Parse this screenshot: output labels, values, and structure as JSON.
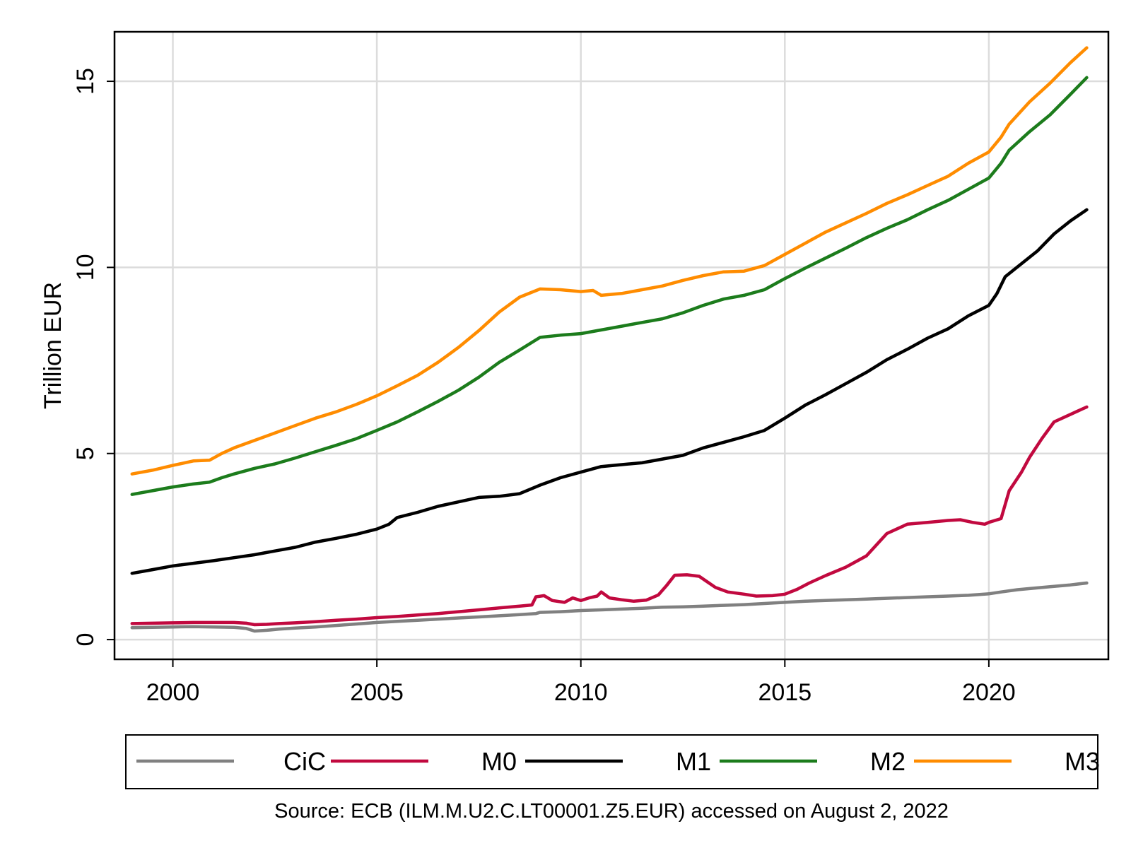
{
  "chart_data": {
    "type": "line",
    "title": "",
    "xlabel": "",
    "ylabel": "Trillion EUR",
    "xlim": [
      1998.57,
      2022.93
    ],
    "ylim": [
      -0.53,
      16.33
    ],
    "xticks": [
      2000,
      2005,
      2010,
      2015,
      2020
    ],
    "yticks": [
      0,
      5,
      10,
      15
    ],
    "ytick_labels": [
      "0",
      "5",
      "10",
      "15"
    ],
    "xtick_labels": [
      "2000",
      "2005",
      "2010",
      "2015",
      "2020"
    ],
    "grid": true,
    "legend_position": "bottom",
    "source": "Source: ECB (ILM.M.U2.C.LT00001.Z5.EUR) accessed on August 2, 2022",
    "series": [
      {
        "name": "CiC",
        "color": "#808080",
        "points": [
          [
            1999.0,
            0.32
          ],
          [
            1999.5,
            0.33
          ],
          [
            2000.0,
            0.34
          ],
          [
            2000.5,
            0.35
          ],
          [
            2001.0,
            0.34
          ],
          [
            2001.5,
            0.33
          ],
          [
            2001.8,
            0.3
          ],
          [
            2002.0,
            0.23
          ],
          [
            2002.3,
            0.25
          ],
          [
            2002.6,
            0.28
          ],
          [
            2003.0,
            0.31
          ],
          [
            2003.5,
            0.34
          ],
          [
            2004.0,
            0.38
          ],
          [
            2004.5,
            0.42
          ],
          [
            2005.0,
            0.46
          ],
          [
            2005.5,
            0.49
          ],
          [
            2006.0,
            0.52
          ],
          [
            2006.5,
            0.55
          ],
          [
            2007.0,
            0.58
          ],
          [
            2007.5,
            0.61
          ],
          [
            2008.0,
            0.64
          ],
          [
            2008.5,
            0.67
          ],
          [
            2008.9,
            0.7
          ],
          [
            2009.0,
            0.73
          ],
          [
            2009.5,
            0.75
          ],
          [
            2010.0,
            0.78
          ],
          [
            2010.5,
            0.8
          ],
          [
            2011.0,
            0.82
          ],
          [
            2011.5,
            0.84
          ],
          [
            2012.0,
            0.87
          ],
          [
            2012.5,
            0.88
          ],
          [
            2013.0,
            0.9
          ],
          [
            2013.5,
            0.92
          ],
          [
            2014.0,
            0.94
          ],
          [
            2014.5,
            0.97
          ],
          [
            2015.0,
            1.0
          ],
          [
            2015.5,
            1.03
          ],
          [
            2016.0,
            1.05
          ],
          [
            2016.5,
            1.07
          ],
          [
            2017.0,
            1.09
          ],
          [
            2017.5,
            1.11
          ],
          [
            2018.0,
            1.13
          ],
          [
            2018.5,
            1.15
          ],
          [
            2019.0,
            1.17
          ],
          [
            2019.5,
            1.19
          ],
          [
            2020.0,
            1.23
          ],
          [
            2020.3,
            1.28
          ],
          [
            2020.7,
            1.34
          ],
          [
            2021.0,
            1.37
          ],
          [
            2021.5,
            1.42
          ],
          [
            2022.0,
            1.47
          ],
          [
            2022.4,
            1.52
          ]
        ]
      },
      {
        "name": "M0",
        "color": "#c1093f",
        "points": [
          [
            1999.0,
            0.43
          ],
          [
            1999.5,
            0.44
          ],
          [
            2000.0,
            0.45
          ],
          [
            2000.5,
            0.46
          ],
          [
            2001.0,
            0.46
          ],
          [
            2001.5,
            0.46
          ],
          [
            2001.8,
            0.44
          ],
          [
            2002.0,
            0.4
          ],
          [
            2002.3,
            0.41
          ],
          [
            2002.6,
            0.43
          ],
          [
            2003.0,
            0.45
          ],
          [
            2003.5,
            0.48
          ],
          [
            2004.0,
            0.52
          ],
          [
            2004.5,
            0.55
          ],
          [
            2005.0,
            0.59
          ],
          [
            2005.5,
            0.62
          ],
          [
            2006.0,
            0.66
          ],
          [
            2006.5,
            0.7
          ],
          [
            2007.0,
            0.75
          ],
          [
            2007.5,
            0.8
          ],
          [
            2008.0,
            0.85
          ],
          [
            2008.5,
            0.9
          ],
          [
            2008.8,
            0.93
          ],
          [
            2008.9,
            1.15
          ],
          [
            2009.1,
            1.18
          ],
          [
            2009.3,
            1.05
          ],
          [
            2009.6,
            1.0
          ],
          [
            2009.8,
            1.12
          ],
          [
            2010.0,
            1.05
          ],
          [
            2010.2,
            1.12
          ],
          [
            2010.4,
            1.17
          ],
          [
            2010.5,
            1.28
          ],
          [
            2010.7,
            1.12
          ],
          [
            2011.0,
            1.07
          ],
          [
            2011.3,
            1.03
          ],
          [
            2011.6,
            1.06
          ],
          [
            2011.9,
            1.2
          ],
          [
            2012.1,
            1.45
          ],
          [
            2012.3,
            1.73
          ],
          [
            2012.6,
            1.74
          ],
          [
            2012.9,
            1.7
          ],
          [
            2013.1,
            1.55
          ],
          [
            2013.3,
            1.4
          ],
          [
            2013.6,
            1.28
          ],
          [
            2014.0,
            1.22
          ],
          [
            2014.3,
            1.17
          ],
          [
            2014.7,
            1.18
          ],
          [
            2015.0,
            1.22
          ],
          [
            2015.3,
            1.35
          ],
          [
            2015.6,
            1.52
          ],
          [
            2016.0,
            1.72
          ],
          [
            2016.5,
            1.95
          ],
          [
            2017.0,
            2.25
          ],
          [
            2017.5,
            2.85
          ],
          [
            2018.0,
            3.1
          ],
          [
            2018.5,
            3.15
          ],
          [
            2019.0,
            3.2
          ],
          [
            2019.3,
            3.22
          ],
          [
            2019.6,
            3.15
          ],
          [
            2019.9,
            3.1
          ],
          [
            2020.0,
            3.15
          ],
          [
            2020.3,
            3.25
          ],
          [
            2020.5,
            4.0
          ],
          [
            2020.8,
            4.5
          ],
          [
            2021.0,
            4.9
          ],
          [
            2021.3,
            5.4
          ],
          [
            2021.6,
            5.85
          ],
          [
            2022.0,
            6.05
          ],
          [
            2022.3,
            6.2
          ],
          [
            2022.4,
            6.25
          ]
        ]
      },
      {
        "name": "M1",
        "color": "#000000",
        "points": [
          [
            1999.0,
            1.78
          ],
          [
            1999.5,
            1.88
          ],
          [
            2000.0,
            1.98
          ],
          [
            2000.5,
            2.05
          ],
          [
            2001.0,
            2.12
          ],
          [
            2001.5,
            2.2
          ],
          [
            2002.0,
            2.28
          ],
          [
            2002.5,
            2.38
          ],
          [
            2003.0,
            2.48
          ],
          [
            2003.5,
            2.62
          ],
          [
            2004.0,
            2.72
          ],
          [
            2004.5,
            2.83
          ],
          [
            2005.0,
            2.97
          ],
          [
            2005.3,
            3.1
          ],
          [
            2005.5,
            3.28
          ],
          [
            2006.0,
            3.42
          ],
          [
            2006.5,
            3.58
          ],
          [
            2007.0,
            3.7
          ],
          [
            2007.5,
            3.82
          ],
          [
            2008.0,
            3.85
          ],
          [
            2008.5,
            3.92
          ],
          [
            2009.0,
            4.15
          ],
          [
            2009.5,
            4.35
          ],
          [
            2010.0,
            4.5
          ],
          [
            2010.5,
            4.65
          ],
          [
            2011.0,
            4.7
          ],
          [
            2011.5,
            4.75
          ],
          [
            2012.0,
            4.85
          ],
          [
            2012.5,
            4.95
          ],
          [
            2013.0,
            5.15
          ],
          [
            2013.5,
            5.3
          ],
          [
            2014.0,
            5.45
          ],
          [
            2014.5,
            5.62
          ],
          [
            2015.0,
            5.95
          ],
          [
            2015.5,
            6.3
          ],
          [
            2016.0,
            6.58
          ],
          [
            2016.5,
            6.88
          ],
          [
            2017.0,
            7.18
          ],
          [
            2017.5,
            7.52
          ],
          [
            2018.0,
            7.8
          ],
          [
            2018.5,
            8.1
          ],
          [
            2019.0,
            8.35
          ],
          [
            2019.5,
            8.7
          ],
          [
            2020.0,
            8.98
          ],
          [
            2020.2,
            9.3
          ],
          [
            2020.4,
            9.75
          ],
          [
            2020.8,
            10.1
          ],
          [
            2021.2,
            10.45
          ],
          [
            2021.6,
            10.9
          ],
          [
            2022.0,
            11.25
          ],
          [
            2022.4,
            11.55
          ]
        ]
      },
      {
        "name": "M2",
        "color": "#1c7c1c",
        "points": [
          [
            1999.0,
            3.9
          ],
          [
            1999.5,
            4.0
          ],
          [
            2000.0,
            4.1
          ],
          [
            2000.5,
            4.18
          ],
          [
            2000.9,
            4.23
          ],
          [
            2001.2,
            4.35
          ],
          [
            2001.5,
            4.45
          ],
          [
            2002.0,
            4.6
          ],
          [
            2002.5,
            4.72
          ],
          [
            2003.0,
            4.88
          ],
          [
            2003.5,
            5.05
          ],
          [
            2004.0,
            5.22
          ],
          [
            2004.5,
            5.4
          ],
          [
            2005.0,
            5.62
          ],
          [
            2005.5,
            5.85
          ],
          [
            2006.0,
            6.12
          ],
          [
            2006.5,
            6.4
          ],
          [
            2007.0,
            6.7
          ],
          [
            2007.5,
            7.05
          ],
          [
            2008.0,
            7.45
          ],
          [
            2008.5,
            7.78
          ],
          [
            2009.0,
            8.12
          ],
          [
            2009.5,
            8.18
          ],
          [
            2010.0,
            8.22
          ],
          [
            2010.5,
            8.32
          ],
          [
            2011.0,
            8.42
          ],
          [
            2011.5,
            8.52
          ],
          [
            2012.0,
            8.62
          ],
          [
            2012.5,
            8.78
          ],
          [
            2013.0,
            8.98
          ],
          [
            2013.5,
            9.15
          ],
          [
            2014.0,
            9.25
          ],
          [
            2014.5,
            9.4
          ],
          [
            2015.0,
            9.7
          ],
          [
            2015.5,
            9.98
          ],
          [
            2016.0,
            10.25
          ],
          [
            2016.5,
            10.52
          ],
          [
            2017.0,
            10.8
          ],
          [
            2017.5,
            11.05
          ],
          [
            2018.0,
            11.28
          ],
          [
            2018.5,
            11.55
          ],
          [
            2019.0,
            11.8
          ],
          [
            2019.5,
            12.1
          ],
          [
            2020.0,
            12.4
          ],
          [
            2020.3,
            12.8
          ],
          [
            2020.5,
            13.15
          ],
          [
            2021.0,
            13.65
          ],
          [
            2021.5,
            14.1
          ],
          [
            2022.0,
            14.65
          ],
          [
            2022.4,
            15.1
          ]
        ]
      },
      {
        "name": "M3",
        "color": "#ff8c00",
        "points": [
          [
            1999.0,
            4.45
          ],
          [
            1999.5,
            4.55
          ],
          [
            2000.0,
            4.68
          ],
          [
            2000.5,
            4.8
          ],
          [
            2000.9,
            4.82
          ],
          [
            2001.2,
            5.0
          ],
          [
            2001.5,
            5.15
          ],
          [
            2002.0,
            5.35
          ],
          [
            2002.5,
            5.55
          ],
          [
            2003.0,
            5.75
          ],
          [
            2003.5,
            5.95
          ],
          [
            2004.0,
            6.12
          ],
          [
            2004.5,
            6.32
          ],
          [
            2005.0,
            6.55
          ],
          [
            2005.5,
            6.82
          ],
          [
            2006.0,
            7.1
          ],
          [
            2006.5,
            7.45
          ],
          [
            2007.0,
            7.85
          ],
          [
            2007.5,
            8.3
          ],
          [
            2008.0,
            8.8
          ],
          [
            2008.5,
            9.2
          ],
          [
            2009.0,
            9.42
          ],
          [
            2009.5,
            9.4
          ],
          [
            2010.0,
            9.35
          ],
          [
            2010.3,
            9.38
          ],
          [
            2010.5,
            9.25
          ],
          [
            2011.0,
            9.3
          ],
          [
            2011.5,
            9.4
          ],
          [
            2012.0,
            9.5
          ],
          [
            2012.5,
            9.65
          ],
          [
            2013.0,
            9.78
          ],
          [
            2013.5,
            9.88
          ],
          [
            2014.0,
            9.9
          ],
          [
            2014.5,
            10.05
          ],
          [
            2015.0,
            10.35
          ],
          [
            2015.5,
            10.65
          ],
          [
            2016.0,
            10.95
          ],
          [
            2016.5,
            11.2
          ],
          [
            2017.0,
            11.45
          ],
          [
            2017.5,
            11.72
          ],
          [
            2018.0,
            11.95
          ],
          [
            2018.5,
            12.2
          ],
          [
            2019.0,
            12.45
          ],
          [
            2019.5,
            12.8
          ],
          [
            2020.0,
            13.1
          ],
          [
            2020.3,
            13.5
          ],
          [
            2020.5,
            13.85
          ],
          [
            2021.0,
            14.45
          ],
          [
            2021.5,
            14.95
          ],
          [
            2022.0,
            15.5
          ],
          [
            2022.4,
            15.9
          ]
        ]
      }
    ]
  }
}
